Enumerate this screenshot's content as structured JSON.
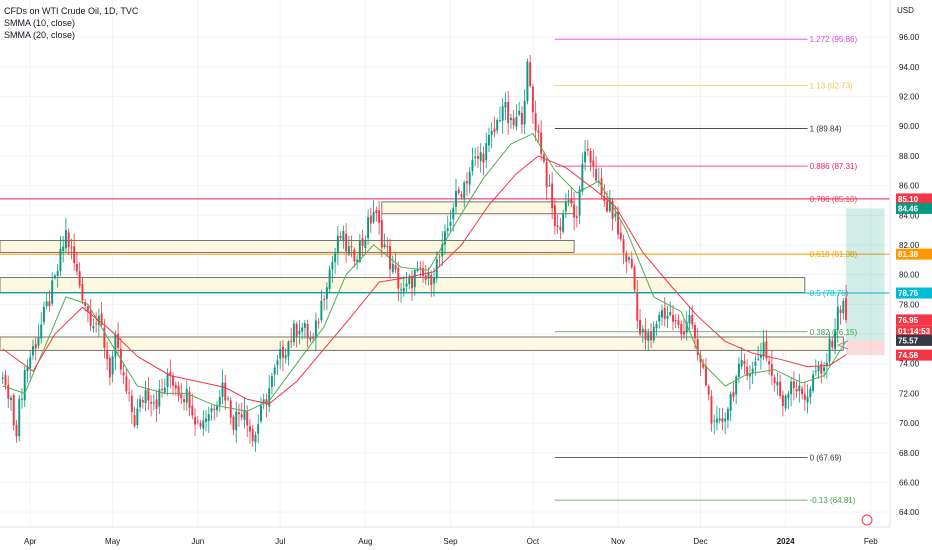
{
  "legend": {
    "title": "CFDs on WTI Crude Oil, 1D, TVC",
    "sma10": "SMMA (10, close)",
    "sma20": "SMMA (20, close)"
  },
  "currency": "USD",
  "colors": {
    "up": "#089981",
    "down": "#f23645",
    "smma10": "#4caf50",
    "smma20": "#f23645",
    "zone_fill": "#fdf8e1",
    "zone_border": "#555555"
  },
  "chart_data": {
    "type": "candlestick",
    "ylim": [
      63.0,
      98.5
    ],
    "y_ticks": [
      "64.00",
      "66.00",
      "68.00",
      "70.00",
      "72.00",
      "74.00",
      "76.00",
      "78.00",
      "80.00",
      "82.00",
      "84.00",
      "86.00",
      "88.00",
      "90.00",
      "92.00",
      "94.00",
      "96.00"
    ],
    "x_labels": [
      {
        "label": "Apr",
        "day": 5
      },
      {
        "label": "May",
        "day": 35
      },
      {
        "label": "Jun",
        "day": 66
      },
      {
        "label": "Jul",
        "day": 96
      },
      {
        "label": "Aug",
        "day": 127
      },
      {
        "label": "Sep",
        "day": 158
      },
      {
        "label": "Oct",
        "day": 188
      },
      {
        "label": "Nov",
        "day": 219
      },
      {
        "label": "Dec",
        "day": 249
      },
      {
        "label": "2024",
        "day": 280
      },
      {
        "label": "Feb",
        "day": 311
      }
    ],
    "x_range_days": [
      -6,
      318
    ],
    "keypoints": [
      [
        -5,
        73.0
      ],
      [
        0,
        69.8
      ],
      [
        3,
        73.5
      ],
      [
        8,
        76.0
      ],
      [
        14,
        79.5
      ],
      [
        18,
        82.8
      ],
      [
        22,
        80.0
      ],
      [
        26,
        77.5
      ],
      [
        31,
        76.3
      ],
      [
        34,
        73.5
      ],
      [
        36,
        75.3
      ],
      [
        40,
        72.0
      ],
      [
        43,
        70.2
      ],
      [
        47,
        72.2
      ],
      [
        51,
        71.5
      ],
      [
        56,
        73.2
      ],
      [
        59,
        72.3
      ],
      [
        63,
        71.7
      ],
      [
        66,
        69.9
      ],
      [
        71,
        71.0
      ],
      [
        75,
        72.6
      ],
      [
        79,
        70.2
      ],
      [
        83,
        71.2
      ],
      [
        86,
        68.8
      ],
      [
        88,
        70.0
      ],
      [
        92,
        72.3
      ],
      [
        97,
        74.9
      ],
      [
        103,
        76.7
      ],
      [
        108,
        75.4
      ],
      [
        113,
        79.8
      ],
      [
        118,
        82.6
      ],
      [
        122,
        81.2
      ],
      [
        126,
        82.2
      ],
      [
        130,
        84.3
      ],
      [
        133,
        82.5
      ],
      [
        137,
        80.3
      ],
      [
        141,
        78.7
      ],
      [
        145,
        80.0
      ],
      [
        150,
        79.6
      ],
      [
        155,
        81.5
      ],
      [
        159,
        84.7
      ],
      [
        162,
        85.8
      ],
      [
        166,
        87.4
      ],
      [
        170,
        88.2
      ],
      [
        174,
        89.6
      ],
      [
        177,
        91.5
      ],
      [
        180,
        89.9
      ],
      [
        184,
        90.8
      ],
      [
        186,
        93.8
      ],
      [
        188,
        91.0
      ],
      [
        191,
        88.6
      ],
      [
        195,
        84.3
      ],
      [
        197,
        82.8
      ],
      [
        201,
        85.5
      ],
      [
        204,
        83.3
      ],
      [
        206,
        87.8
      ],
      [
        210,
        87.6
      ],
      [
        213,
        85.0
      ],
      [
        217,
        84.3
      ],
      [
        221,
        81.5
      ],
      [
        224,
        80.5
      ],
      [
        227,
        76.0
      ],
      [
        231,
        75.5
      ],
      [
        234,
        77.5
      ],
      [
        238,
        77.3
      ],
      [
        242,
        76.0
      ],
      [
        245,
        77.5
      ],
      [
        247,
        75.1
      ],
      [
        251,
        72.8
      ],
      [
        254,
        69.5
      ],
      [
        256,
        69.8
      ],
      [
        259,
        71.2
      ],
      [
        262,
        73.0
      ],
      [
        265,
        74.0
      ],
      [
        268,
        73.5
      ],
      [
        272,
        75.4
      ],
      [
        275,
        73.2
      ],
      [
        279,
        71.5
      ],
      [
        282,
        73.0
      ],
      [
        285,
        72.0
      ],
      [
        287,
        71.8
      ],
      [
        289,
        72.5
      ],
      [
        291,
        73.5
      ],
      [
        293,
        73.0
      ],
      [
        296,
        75.0
      ],
      [
        299,
        77.3
      ],
      [
        301,
        78.5
      ],
      [
        302,
        76.95
      ]
    ],
    "smma10_points": [
      [
        -5,
        72.5
      ],
      [
        3,
        72.0
      ],
      [
        10,
        75.0
      ],
      [
        18,
        78.5
      ],
      [
        26,
        78.0
      ],
      [
        34,
        75.5
      ],
      [
        44,
        72.5
      ],
      [
        54,
        72.0
      ],
      [
        62,
        72.0
      ],
      [
        72,
        71.2
      ],
      [
        84,
        70.8
      ],
      [
        92,
        71.5
      ],
      [
        102,
        74.0
      ],
      [
        112,
        76.5
      ],
      [
        120,
        80.0
      ],
      [
        130,
        82.0
      ],
      [
        140,
        80.5
      ],
      [
        150,
        80.3
      ],
      [
        160,
        83.5
      ],
      [
        170,
        86.5
      ],
      [
        180,
        88.8
      ],
      [
        188,
        89.5
      ],
      [
        196,
        87.0
      ],
      [
        204,
        85.5
      ],
      [
        212,
        86.3
      ],
      [
        222,
        83.0
      ],
      [
        232,
        78.5
      ],
      [
        242,
        77.5
      ],
      [
        250,
        74.0
      ],
      [
        258,
        72.5
      ],
      [
        266,
        73.3
      ],
      [
        276,
        73.6
      ],
      [
        286,
        72.7
      ],
      [
        294,
        73.2
      ],
      [
        302,
        75.5
      ]
    ],
    "smma20_points": [
      [
        -5,
        75.0
      ],
      [
        6,
        73.5
      ],
      [
        14,
        76.0
      ],
      [
        24,
        77.8
      ],
      [
        34,
        76.3
      ],
      [
        44,
        74.5
      ],
      [
        56,
        73.2
      ],
      [
        66,
        72.8
      ],
      [
        76,
        72.4
      ],
      [
        84,
        71.6
      ],
      [
        92,
        71.3
      ],
      [
        102,
        72.8
      ],
      [
        112,
        75.0
      ],
      [
        122,
        77.2
      ],
      [
        132,
        79.5
      ],
      [
        142,
        79.8
      ],
      [
        152,
        80.2
      ],
      [
        162,
        82.0
      ],
      [
        172,
        84.7
      ],
      [
        182,
        86.8
      ],
      [
        190,
        88.0
      ],
      [
        200,
        87.2
      ],
      [
        210,
        85.8
      ],
      [
        218,
        84.6
      ],
      [
        228,
        81.5
      ],
      [
        238,
        79.3
      ],
      [
        248,
        77.2
      ],
      [
        258,
        75.5
      ],
      [
        268,
        74.7
      ],
      [
        278,
        74.3
      ],
      [
        288,
        73.8
      ],
      [
        296,
        73.9
      ],
      [
        302,
        74.6
      ]
    ],
    "zones": [
      {
        "day_from": 133,
        "day_to": 203,
        "low": 84.1,
        "high": 84.9
      },
      {
        "day_from": -6,
        "day_to": 203,
        "low": 81.5,
        "high": 82.3
      },
      {
        "day_from": -6,
        "day_to": 287,
        "low": 78.8,
        "high": 79.8
      },
      {
        "day_from": -6,
        "day_to": 301,
        "low": 74.9,
        "high": 75.8
      }
    ],
    "fib_levels": [
      {
        "label": "1.272 (95.86)",
        "value": 95.86,
        "color": "#e040fb"
      },
      {
        "label": "1.13 (92.73)",
        "value": 92.73,
        "color": "#f5c542"
      },
      {
        "label": "1 (89.84)",
        "value": 89.84,
        "color": "#333333"
      },
      {
        "label": "0.886 (87.31)",
        "value": 87.31,
        "color": "#e91e63"
      },
      {
        "label": "0.786 (85.10)",
        "value": 85.1,
        "color": "#f23645"
      },
      {
        "label": "0.618 (81.38)",
        "value": 81.38,
        "color": "#ff9800"
      },
      {
        "label": "0.5 (78.76)",
        "value": 78.76,
        "color": "#00bcd4"
      },
      {
        "label": "0.382 (76.15)",
        "value": 76.15,
        "color": "#43a047"
      },
      {
        "label": "0 (67.69)",
        "value": 67.69,
        "color": "#333333"
      },
      {
        "label": "-0.13 (64.81)",
        "value": 64.81,
        "color": "#43a047"
      }
    ],
    "fib_day_from": 196,
    "fib_day_to": 288,
    "full_lines": [
      {
        "value": 85.1,
        "color": "#e91e63"
      },
      {
        "value": 81.38,
        "color": "#ff9800"
      },
      {
        "value": 78.76,
        "color": "#00bcd4"
      }
    ],
    "price_tags": [
      {
        "label": "85.10",
        "value": 85.1,
        "color": "#f23645"
      },
      {
        "label": "84.46",
        "value": 84.46,
        "color": "#089981"
      },
      {
        "label": "81.38",
        "value": 81.38,
        "color": "#ff9800"
      },
      {
        "label": "78.76",
        "value": 78.76,
        "color": "#00bcd4"
      },
      {
        "label": "76.95",
        "value": 76.95,
        "color": "#f23645"
      },
      {
        "label": "01:14:53",
        "value": 76.2,
        "color": "#f23645"
      },
      {
        "label": "75.57",
        "value": 75.57,
        "color": "#363a45"
      },
      {
        "label": "74.58",
        "value": 74.58,
        "color": "#f23645"
      }
    ],
    "position": {
      "day_from": 302,
      "day_to": 316,
      "entry": 75.57,
      "target": 84.46,
      "stop": 74.58
    }
  }
}
